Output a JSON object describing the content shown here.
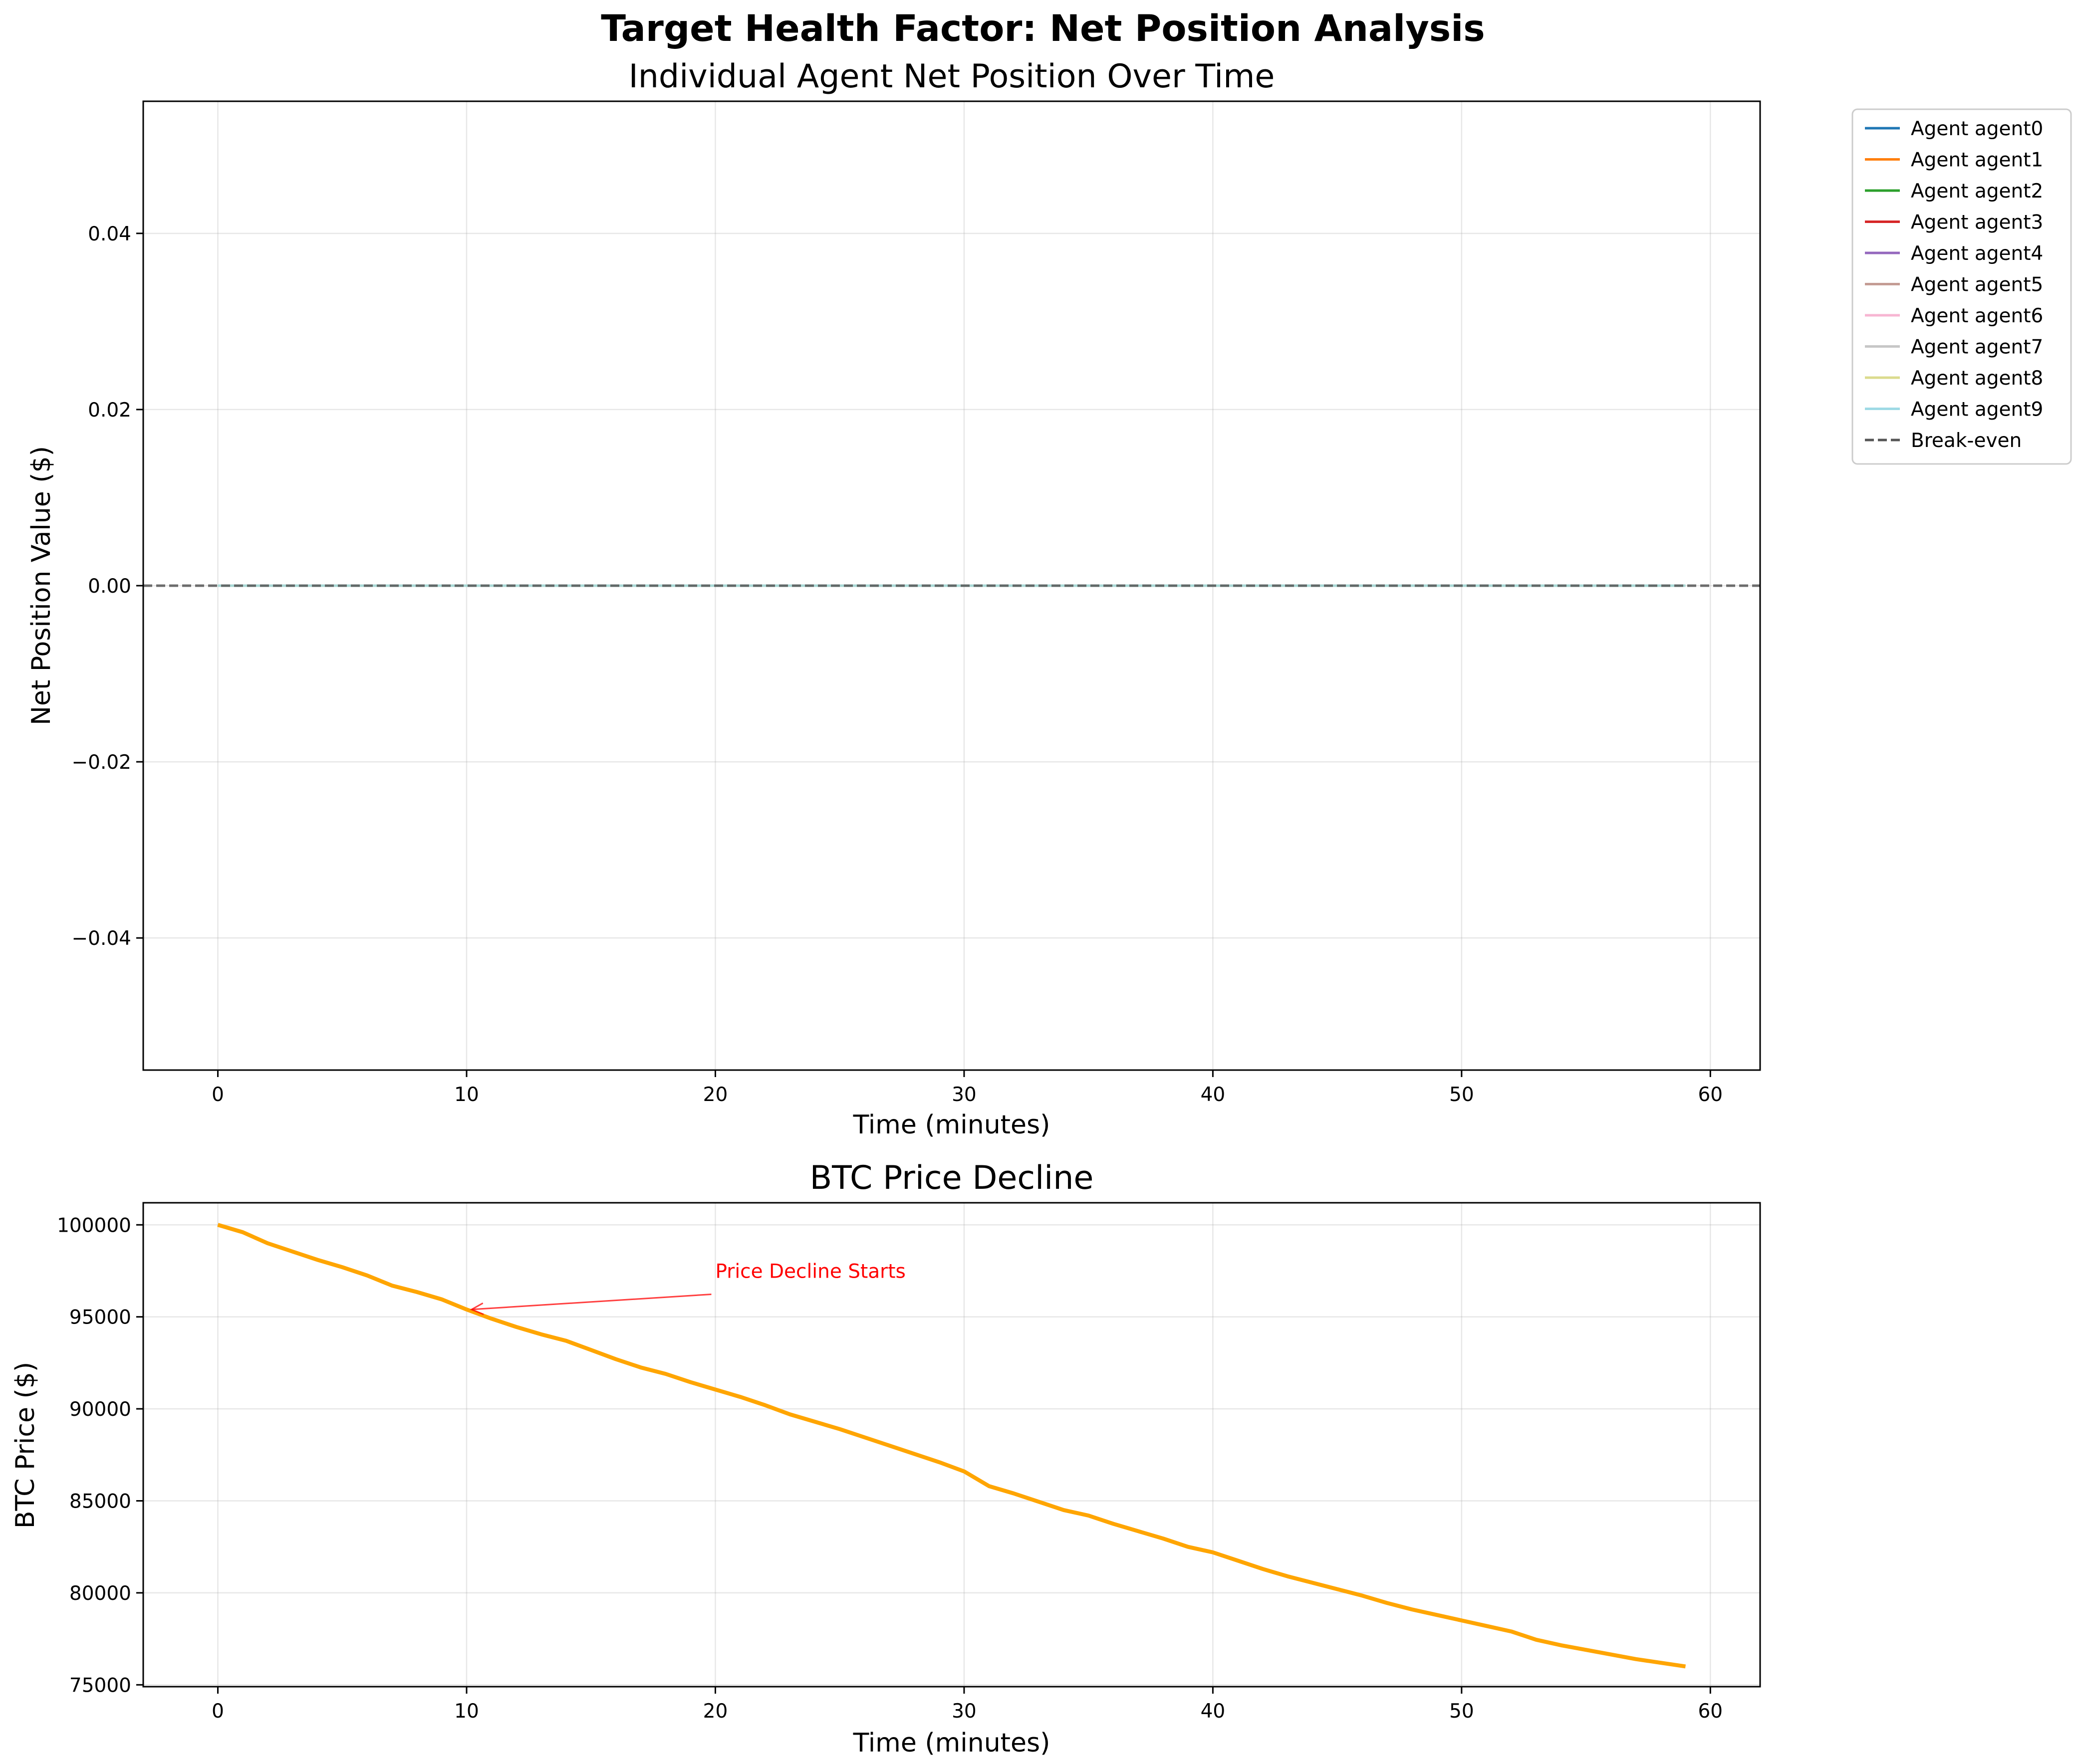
{
  "figure": {
    "title": "Target Health Factor: Net Position Analysis"
  },
  "chart_data": [
    {
      "type": "line",
      "title": "Individual Agent Net Position Over Time",
      "xlabel": "Time (minutes)",
      "ylabel": "Net Position Value ($)",
      "xlim": [
        -3,
        62
      ],
      "ylim": [
        -0.055,
        0.055
      ],
      "xticks": [
        0,
        10,
        20,
        30,
        40,
        50,
        60
      ],
      "yticks": [
        -0.04,
        -0.02,
        0.0,
        0.02,
        0.04
      ],
      "ytick_labels": [
        "−0.04",
        "−0.02",
        "0.00",
        "0.02",
        "0.04"
      ],
      "grid": true,
      "legend": "outside-top-right",
      "x": [
        0,
        59
      ],
      "series": [
        {
          "name": "Agent agent0",
          "color": "#1f77b4",
          "values": [
            0,
            0
          ]
        },
        {
          "name": "Agent agent1",
          "color": "#ff7f0e",
          "values": [
            0,
            0
          ]
        },
        {
          "name": "Agent agent2",
          "color": "#2ca02c",
          "values": [
            0,
            0
          ]
        },
        {
          "name": "Agent agent3",
          "color": "#d62728",
          "values": [
            0,
            0
          ]
        },
        {
          "name": "Agent agent4",
          "color": "#9467bd",
          "values": [
            0,
            0
          ]
        },
        {
          "name": "Agent agent5",
          "color": "#c49c94",
          "values": [
            0,
            0
          ]
        },
        {
          "name": "Agent agent6",
          "color": "#f7b6d2",
          "values": [
            0,
            0
          ]
        },
        {
          "name": "Agent agent7",
          "color": "#c7c7c7",
          "values": [
            0,
            0
          ]
        },
        {
          "name": "Agent agent8",
          "color": "#dbdb8d",
          "values": [
            0,
            0
          ]
        },
        {
          "name": "Agent agent9",
          "color": "#9edae5",
          "values": [
            0,
            0
          ]
        }
      ],
      "reference_line": {
        "name": "Break-even",
        "y": 0,
        "style": "dashed",
        "color": "#555555"
      }
    },
    {
      "type": "line",
      "title": "BTC Price Decline",
      "xlabel": "Time (minutes)",
      "ylabel": "BTC Price ($)",
      "xlim": [
        -3,
        62
      ],
      "ylim": [
        74900,
        101200
      ],
      "xticks": [
        0,
        10,
        20,
        30,
        40,
        50,
        60
      ],
      "yticks": [
        75000,
        80000,
        85000,
        90000,
        95000,
        100000
      ],
      "grid": true,
      "series": [
        {
          "color": "#ffa500",
          "x": [
            0,
            1,
            2,
            3,
            4,
            5,
            6,
            7,
            8,
            9,
            10,
            11,
            12,
            13,
            14,
            15,
            16,
            17,
            18,
            19,
            20,
            21,
            22,
            23,
            24,
            25,
            26,
            27,
            28,
            29,
            30,
            31,
            32,
            33,
            34,
            35,
            36,
            37,
            38,
            39,
            40,
            41,
            42,
            43,
            44,
            45,
            46,
            47,
            48,
            49,
            50,
            51,
            52,
            53,
            54,
            55,
            56,
            57,
            58,
            59
          ],
          "values": [
            100000,
            99600,
            99000,
            98550,
            98100,
            97700,
            97250,
            96700,
            96350,
            95950,
            95400,
            94900,
            94450,
            94050,
            93700,
            93200,
            92700,
            92250,
            91900,
            91450,
            91050,
            90650,
            90200,
            89700,
            89300,
            88900,
            88450,
            88000,
            87550,
            87100,
            86600,
            85800,
            85400,
            84950,
            84500,
            84200,
            83750,
            83350,
            82950,
            82500,
            82200,
            81750,
            81300,
            80900,
            80550,
            80200,
            79850,
            79450,
            79100,
            78800,
            78500,
            78200,
            77900,
            77450,
            77150,
            76900,
            76650,
            76400,
            76200,
            76000
          ]
        }
      ],
      "annotation": {
        "text": "Price Decline Starts",
        "x": 10,
        "y": 95400,
        "text_x": 20,
        "text_y": 97500,
        "color": "#ff0000"
      }
    }
  ]
}
